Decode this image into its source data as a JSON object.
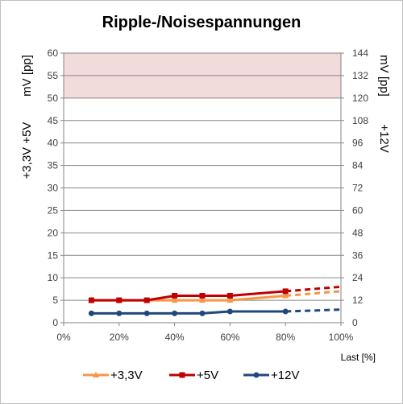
{
  "chart_data": {
    "type": "line",
    "title": "Ripple-/Noisespannungen",
    "xlabel": "Last [%]",
    "x_ticks": [
      "0%",
      "20%",
      "40%",
      "60%",
      "80%",
      "100%"
    ],
    "xlim": [
      0,
      100
    ],
    "ylabel_left_top": "mV [pp]",
    "ylabel_left_bottom": "+3,3V +5V",
    "ylabel_right_top": "mV [pp]",
    "ylabel_right_bottom": "+12V",
    "ylim_left": [
      0,
      60
    ],
    "ylim_right": [
      0,
      144
    ],
    "y_ticks_left": [
      0,
      5,
      10,
      15,
      20,
      25,
      30,
      35,
      40,
      45,
      50,
      55,
      60
    ],
    "y_ticks_right": [
      0,
      12,
      24,
      36,
      48,
      60,
      72,
      84,
      96,
      108,
      120,
      132,
      144
    ],
    "limit_band_left": [
      50,
      60
    ],
    "grid": true,
    "legend_position": "bottom",
    "series": [
      {
        "name": "+3,3V",
        "axis": "left",
        "color": "#f79646",
        "marker": "triangle",
        "x": [
          10,
          20,
          30,
          40,
          50,
          60,
          80
        ],
        "values": [
          5,
          5,
          5,
          5,
          5,
          5,
          6
        ],
        "projected_x": [
          80,
          100
        ],
        "projected_values": [
          6,
          7
        ]
      },
      {
        "name": "+5V",
        "axis": "left",
        "color": "#c00000",
        "marker": "square",
        "x": [
          10,
          20,
          30,
          40,
          50,
          60,
          80
        ],
        "values": [
          5,
          5,
          5,
          6,
          6,
          6,
          7
        ],
        "projected_x": [
          80,
          100
        ],
        "projected_values": [
          7,
          8
        ]
      },
      {
        "name": "+12V",
        "axis": "right",
        "color": "#1f497d",
        "marker": "circle",
        "x": [
          10,
          20,
          30,
          40,
          50,
          60,
          80
        ],
        "values": [
          5,
          5,
          5,
          5,
          5,
          6,
          6
        ],
        "projected_x": [
          80,
          100
        ],
        "projected_values": [
          6,
          7
        ]
      }
    ]
  }
}
